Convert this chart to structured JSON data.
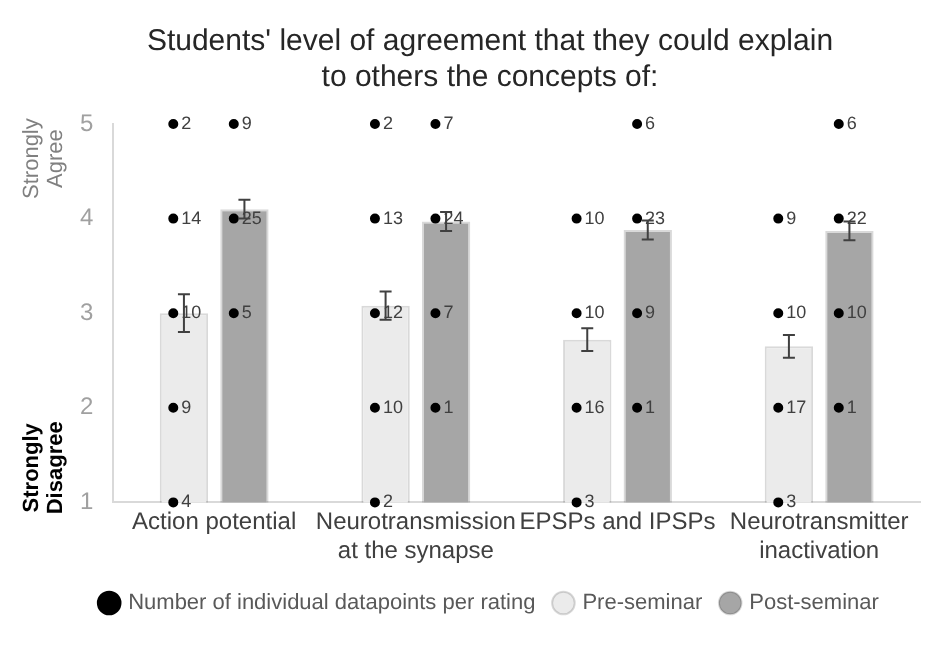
{
  "chart_data": {
    "type": "bar",
    "title": "Students' level of agreement that they could explain to others the concepts of:",
    "categories": [
      "Action potential",
      "Neurotransmission at the synapse",
      "EPSPs and IPSPs",
      "Neurotransmitter inactivation"
    ],
    "ylim": [
      1,
      5
    ],
    "yticks": [
      1,
      2,
      3,
      4,
      5
    ],
    "grid": false,
    "legend": "bottom",
    "annotations": [
      "Strongly Agree",
      "Strongly Disagree",
      "4",
      "9",
      "10",
      "14",
      "2",
      "2",
      "10",
      "12",
      "13",
      "2",
      "3",
      "16",
      "10",
      "10",
      "3",
      "17",
      "10",
      "9",
      "5",
      "25",
      "9",
      "1",
      "7",
      "24",
      "7",
      "1",
      "9",
      "23",
      "6",
      "1",
      "10",
      "22",
      "6"
    ],
    "series": [
      {
        "name": "Pre-seminar",
        "color": "#ebebeb",
        "values": [
          3.0,
          3.08,
          2.72,
          2.65
        ],
        "errors": [
          0.2,
          0.15,
          0.12,
          0.12
        ]
      },
      {
        "name": "Post-seminar",
        "color": "#a6a6a6",
        "values": [
          4.1,
          3.97,
          3.88,
          3.87
        ],
        "errors": [
          0.1,
          0.1,
          0.1,
          0.1
        ]
      },
      {
        "type": "scatter",
        "name": "Number of individual datapoints per rating",
        "color": "#000000",
        "marker": "circle",
        "x": [
          "Action potential",
          "Action potential",
          "Action potential",
          "Action potential",
          "Action potential",
          "Neurotransmission at the synapse",
          "Neurotransmission at the synapse",
          "Neurotransmission at the synapse",
          "Neurotransmission at the synapse",
          "Neurotransmission at the synapse",
          "EPSPs and IPSPs",
          "EPSPs and IPSPs",
          "EPSPs and IPSPs",
          "EPSPs and IPSPs",
          "Neurotransmitter inactivation",
          "Neurotransmitter inactivation",
          "Neurotransmitter inactivation",
          "Neurotransmitter inactivation"
        ],
        "values": [
          1,
          2,
          3,
          4,
          5,
          1,
          2,
          3,
          4,
          5,
          1,
          2,
          3,
          4,
          1,
          2,
          3,
          4
        ]
      },
      {
        "type": "scatter",
        "color": "#000000",
        "marker": "circle",
        "x": [
          "Action potential",
          "Action potential",
          "Action potential",
          "Neurotransmission at the synapse",
          "Neurotransmission at the synapse",
          "Neurotransmission at the synapse",
          "Neurotransmission at the synapse",
          "EPSPs and IPSPs",
          "EPSPs and IPSPs",
          "EPSPs and IPSPs",
          "EPSPs and IPSPs",
          "Neurotransmitter inactivation",
          "Neurotransmitter inactivation",
          "Neurotransmitter inactivation",
          "Neurotransmitter inactivation"
        ],
        "values": [
          3,
          4,
          5,
          2,
          3,
          4,
          5,
          2,
          3,
          4,
          5,
          2,
          3,
          4,
          5
        ]
      }
    ]
  }
}
